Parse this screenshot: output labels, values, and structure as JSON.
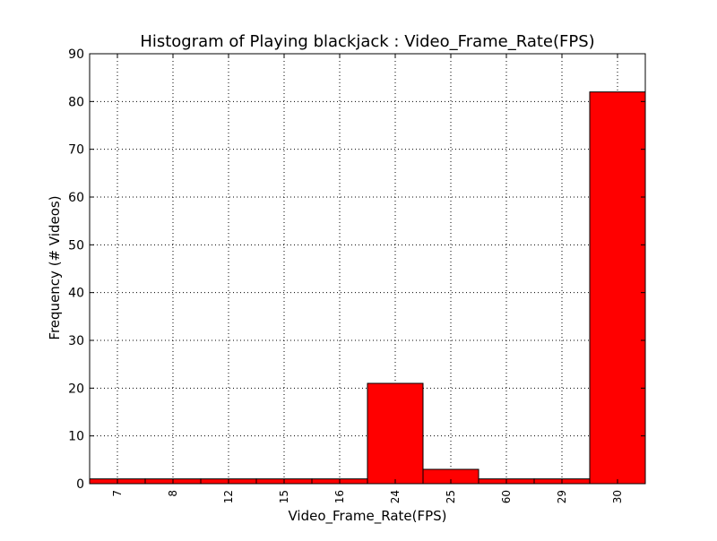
{
  "chart_data": {
    "type": "bar",
    "title": "Histogram of Playing blackjack : Video_Frame_Rate(FPS)",
    "xlabel": "Video_Frame_Rate(FPS)",
    "ylabel": "Frequency (# Videos)",
    "categories": [
      "7",
      "8",
      "12",
      "15",
      "16",
      "24",
      "25",
      "60",
      "29",
      "30"
    ],
    "values": [
      1,
      1,
      1,
      1,
      1,
      21,
      3,
      1,
      1,
      82
    ],
    "ylim": [
      0,
      90
    ],
    "yticks": [
      "0",
      "10",
      "20",
      "30",
      "40",
      "50",
      "60",
      "70",
      "80",
      "90"
    ],
    "grid": true,
    "bar_color": "#ff0000",
    "edge_color": "#000000"
  }
}
